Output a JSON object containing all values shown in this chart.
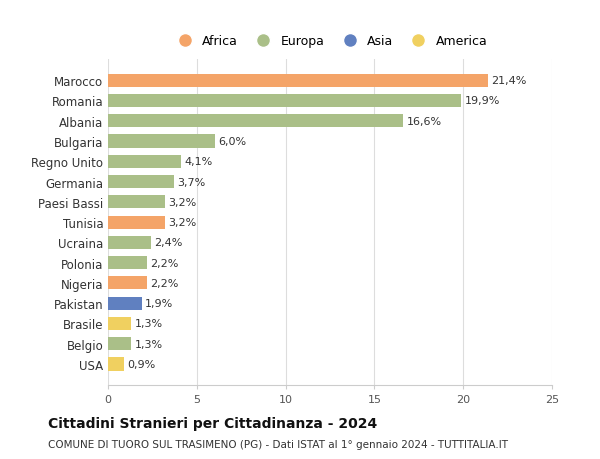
{
  "countries": [
    "Marocco",
    "Romania",
    "Albania",
    "Bulgaria",
    "Regno Unito",
    "Germania",
    "Paesi Bassi",
    "Tunisia",
    "Ucraina",
    "Polonia",
    "Nigeria",
    "Pakistan",
    "Brasile",
    "Belgio",
    "USA"
  ],
  "values": [
    21.4,
    19.9,
    16.6,
    6.0,
    4.1,
    3.7,
    3.2,
    3.2,
    2.4,
    2.2,
    2.2,
    1.9,
    1.3,
    1.3,
    0.9
  ],
  "labels": [
    "21,4%",
    "19,9%",
    "16,6%",
    "6,0%",
    "4,1%",
    "3,7%",
    "3,2%",
    "3,2%",
    "2,4%",
    "2,2%",
    "2,2%",
    "1,9%",
    "1,3%",
    "1,3%",
    "0,9%"
  ],
  "continents": [
    "Africa",
    "Europa",
    "Europa",
    "Europa",
    "Europa",
    "Europa",
    "Europa",
    "Africa",
    "Europa",
    "Europa",
    "Africa",
    "Asia",
    "America",
    "Europa",
    "America"
  ],
  "colors": {
    "Africa": "#F4A468",
    "Europa": "#AABF88",
    "Asia": "#6080C0",
    "America": "#F0D060"
  },
  "legend_entries": [
    "Africa",
    "Europa",
    "Asia",
    "America"
  ],
  "title": "Cittadini Stranieri per Cittadinanza - 2024",
  "subtitle": "COMUNE DI TUORO SUL TRASIMENO (PG) - Dati ISTAT al 1° gennaio 2024 - TUTTITALIA.IT",
  "xlim": [
    0,
    25
  ],
  "xticks": [
    0,
    5,
    10,
    15,
    20,
    25
  ],
  "background_color": "#ffffff",
  "grid_color": "#dddddd"
}
